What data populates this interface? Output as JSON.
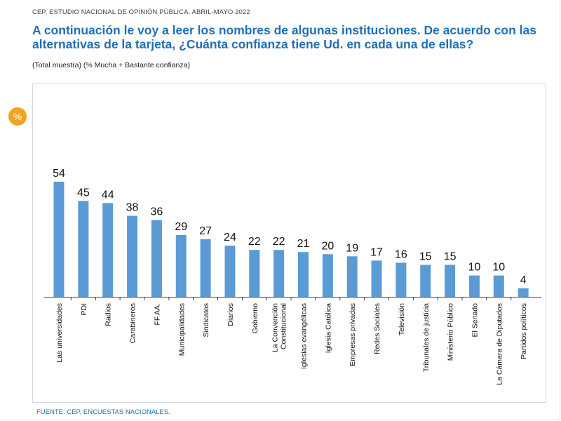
{
  "header": {
    "source_top": "CEP, ESTUDIO NACIONAL DE OPINIÓN PÚBLICA, ABRIL-MAYO 2022",
    "title": "A continuación le voy a leer los nombres de algunas instituciones. De acuerdo con las alternativas de la tarjeta, ¿Cuánta confianza tiene Ud. en cada una de ellas?",
    "subtitle": "(Total muestra) (% Mucha + Bastante confianza)",
    "badge": "%"
  },
  "footer": {
    "source": "FUENTE: CEP, ENCUESTAS NACIONALES."
  },
  "colors": {
    "bar": "#5b9bd5",
    "title": "#1f6fb8",
    "badge": "#f4a21f"
  },
  "chart_data": {
    "type": "bar",
    "title": "",
    "xlabel": "",
    "ylabel": "",
    "ylim": [
      0,
      60
    ],
    "grid": false,
    "categories": [
      "Las universidades",
      "PDI",
      "Radios",
      "Carabineros",
      "FF.AA.",
      "Municipalidades",
      "Sindicatos",
      "Diarios",
      "Gobierno",
      "La Convención Constitucional",
      "Iglesias evangélicas",
      "Iglesia Católica",
      "Empresas privadas",
      "Redes Sociales",
      "Televisión",
      "Tribunales de justicia",
      "Ministerio Público",
      "El Senado",
      "La Cámara de Diputados",
      "Partidos políticos"
    ],
    "category_lines": [
      [
        "Las universidades"
      ],
      [
        "PDI"
      ],
      [
        "Radios"
      ],
      [
        "Carabineros"
      ],
      [
        "FF.AA."
      ],
      [
        "Municipalidades"
      ],
      [
        "Sindicatos"
      ],
      [
        "Diarios"
      ],
      [
        "Gobierno"
      ],
      [
        "La Convención",
        "Constitucional"
      ],
      [
        "Iglesias evangélicas"
      ],
      [
        "Iglesia Católica"
      ],
      [
        "Empresas privadas"
      ],
      [
        "Redes Sociales"
      ],
      [
        "Televisión"
      ],
      [
        "Tribunales de justicia"
      ],
      [
        "Ministerio Público"
      ],
      [
        "El Senado"
      ],
      [
        "La Cámara de Diputados"
      ],
      [
        "Partidos políticos"
      ]
    ],
    "values": [
      54,
      45,
      44,
      38,
      36,
      29,
      27,
      24,
      22,
      22,
      21,
      20,
      19,
      17,
      16,
      15,
      15,
      10,
      10,
      4
    ]
  }
}
